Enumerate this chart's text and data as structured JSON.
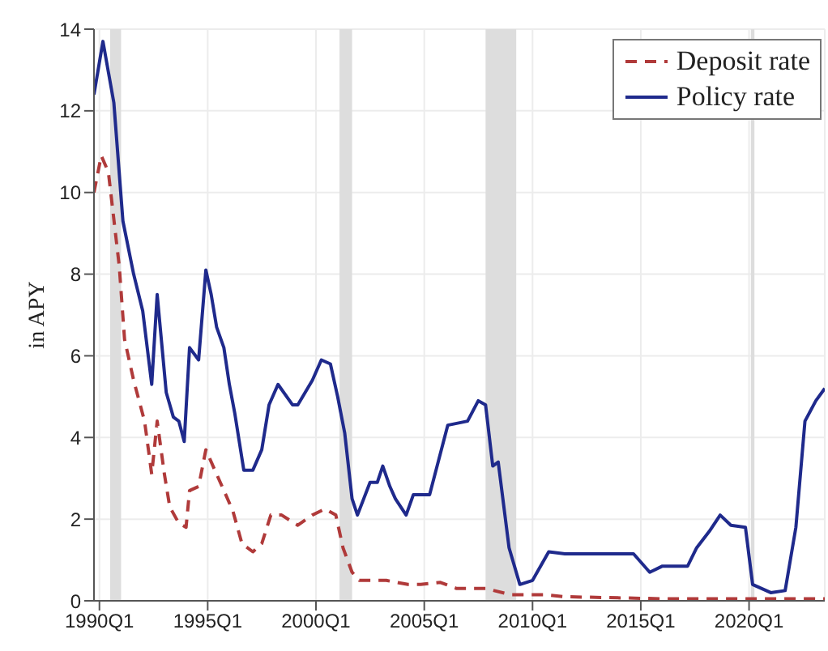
{
  "chart_data": {
    "type": "line",
    "ylabel": "in APY",
    "xlim": [
      "1989-10",
      "2023-07"
    ],
    "xticks": [
      {
        "value": "1990-01",
        "label": "1990Q1"
      },
      {
        "value": "1995-01",
        "label": "1995Q1"
      },
      {
        "value": "2000-01",
        "label": "2000Q1"
      },
      {
        "value": "2005-01",
        "label": "2005Q1"
      },
      {
        "value": "2010-01",
        "label": "2010Q1"
      },
      {
        "value": "2015-01",
        "label": "2015Q1"
      },
      {
        "value": "2020-01",
        "label": "2020Q1"
      }
    ],
    "ylim": [
      0,
      14
    ],
    "yticks": [
      0,
      2,
      4,
      6,
      8,
      10,
      12,
      14
    ],
    "grid": true,
    "legend": "top right",
    "marker": "none",
    "bands": [
      {
        "axis": "x",
        "from": "1990-07",
        "to": "1991-01",
        "color": "#dddddd"
      },
      {
        "axis": "x",
        "from": "2001-02",
        "to": "2001-09",
        "color": "#dddddd"
      },
      {
        "axis": "x",
        "from": "2007-11",
        "to": "2009-04",
        "color": "#dddddd"
      },
      {
        "axis": "x",
        "from": "2020-02",
        "to": "2020-04",
        "color": "#dddddd"
      }
    ],
    "series": [
      {
        "name": "Deposit rate",
        "color": "#b03a3a",
        "line_style": "dashed",
        "x": [
          "1989-10",
          "1990-02",
          "1990-06",
          "1990-12",
          "1991-03",
          "1991-08",
          "1992-02",
          "1992-06",
          "1992-09",
          "1993-01",
          "1993-04",
          "1993-09",
          "1994-01",
          "1994-03",
          "1994-08",
          "1994-12",
          "1995-04",
          "1995-11",
          "1996-03",
          "1996-08",
          "1997-02",
          "1997-07",
          "1997-12",
          "1998-06",
          "1999-03",
          "1999-11",
          "2000-06",
          "2000-12",
          "2001-04",
          "2001-09",
          "2002-01",
          "2003-04",
          "2004-04",
          "2004-11",
          "2005-10",
          "2006-07",
          "2007-11",
          "2009-01",
          "2010-07",
          "2011-07",
          "2016-01",
          "2020-03",
          "2023-07"
        ],
        "values": [
          10.0,
          10.9,
          10.5,
          8.2,
          6.4,
          5.4,
          4.4,
          3.1,
          4.4,
          3.1,
          2.3,
          1.9,
          1.8,
          2.7,
          2.8,
          3.7,
          3.3,
          2.6,
          2.2,
          1.4,
          1.2,
          1.4,
          2.1,
          2.1,
          1.85,
          2.1,
          2.25,
          2.1,
          1.3,
          0.7,
          0.5,
          0.5,
          0.4,
          0.4,
          0.45,
          0.3,
          0.3,
          0.15,
          0.15,
          0.1,
          0.05,
          0.05,
          0.05
        ]
      },
      {
        "name": "Policy rate",
        "color": "#1f2a8c",
        "line_style": "solid",
        "x": [
          "1989-10",
          "1990-03",
          "1990-09",
          "1991-02",
          "1991-08",
          "1992-01",
          "1992-06",
          "1992-09",
          "1993-02",
          "1993-06",
          "1993-09",
          "1993-12",
          "1994-03",
          "1994-08",
          "1994-12",
          "1995-03",
          "1995-06",
          "1995-10",
          "1996-01",
          "1996-04",
          "1996-09",
          "1997-02",
          "1997-07",
          "1997-11",
          "1998-04",
          "1998-12",
          "1999-03",
          "1999-11",
          "2000-04",
          "2000-09",
          "2001-01",
          "2001-05",
          "2001-09",
          "2001-12",
          "2002-07",
          "2002-11",
          "2003-02",
          "2003-06",
          "2003-09",
          "2004-03",
          "2004-07",
          "2004-09",
          "2005-04",
          "2006-02",
          "2007-01",
          "2007-07",
          "2007-11",
          "2008-03",
          "2008-06",
          "2008-12",
          "2009-06",
          "2010-01",
          "2010-10",
          "2011-07",
          "2014-09",
          "2015-06",
          "2016-01",
          "2017-03",
          "2017-08",
          "2018-03",
          "2018-09",
          "2019-03",
          "2019-11",
          "2020-03",
          "2021-01",
          "2021-09",
          "2022-03",
          "2022-08",
          "2023-02",
          "2023-07"
        ],
        "values": [
          12.4,
          13.7,
          12.2,
          9.3,
          8.0,
          7.1,
          5.3,
          7.5,
          5.1,
          4.5,
          4.4,
          3.9,
          6.2,
          5.9,
          8.1,
          7.5,
          6.7,
          6.2,
          5.3,
          4.6,
          3.2,
          3.2,
          3.7,
          4.8,
          5.3,
          4.8,
          4.8,
          5.4,
          5.9,
          5.8,
          5.0,
          4.1,
          2.5,
          2.1,
          2.9,
          2.9,
          3.3,
          2.8,
          2.5,
          2.1,
          2.6,
          2.6,
          2.6,
          4.3,
          4.4,
          4.9,
          4.8,
          3.3,
          3.4,
          1.3,
          0.4,
          0.5,
          1.2,
          1.15,
          1.15,
          0.7,
          0.85,
          0.85,
          1.3,
          1.7,
          2.1,
          1.85,
          1.8,
          0.4,
          0.2,
          0.25,
          1.8,
          4.4,
          4.9,
          5.2
        ]
      }
    ]
  }
}
